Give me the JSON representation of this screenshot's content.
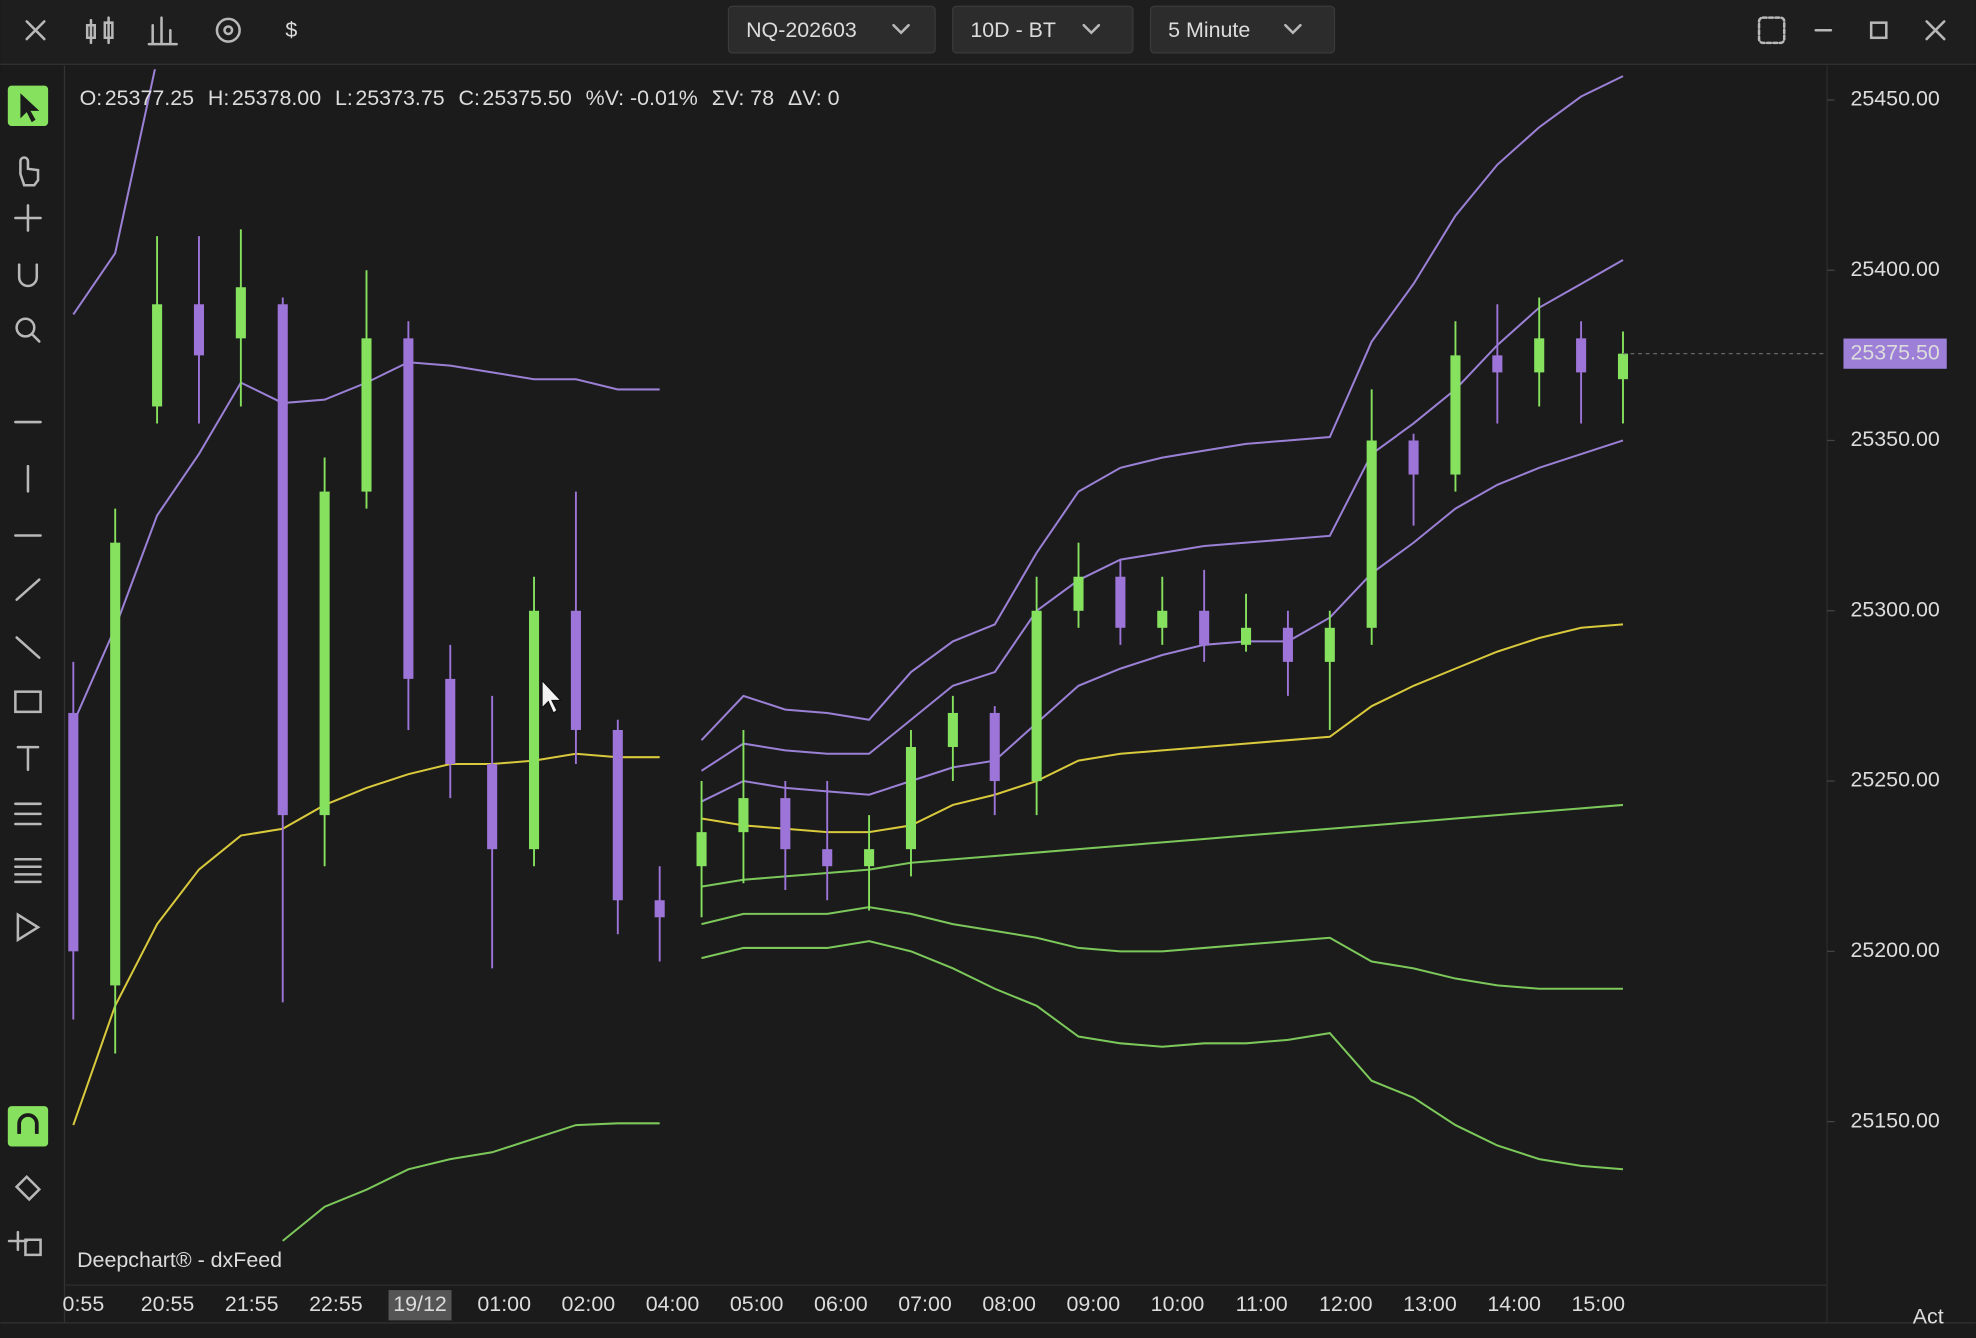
{
  "toolbar": {
    "symbol": "NQ-202603",
    "range": "10D - BT",
    "interval": "5 Minute"
  },
  "ohlc_header": {
    "fields": [
      {
        "label": "O:",
        "value": "25377.25"
      },
      {
        "label": "H:",
        "value": "25378.00"
      },
      {
        "label": "L:",
        "value": "25373.75"
      },
      {
        "label": "C:",
        "value": "25375.50"
      }
    ],
    "stats": [
      "%V: -0.01%",
      "ΣV: 78",
      "ΔV: 0"
    ]
  },
  "watermark": "Deepchart® - dxFeed",
  "corner_text": "Act",
  "chart_data": {
    "type": "candlestick",
    "up_color": "#86e25e",
    "down_color": "#9d74d8",
    "open": [
      25270,
      25190,
      25360,
      25390,
      25380,
      25390,
      25240,
      25335,
      25380,
      25280,
      25255,
      25230,
      25300,
      25265,
      25215,
      25225,
      25235,
      25245,
      25230,
      25225,
      25230,
      25260,
      25270,
      25250,
      25300,
      25310,
      25295,
      25300,
      25290,
      25295,
      25285,
      25295,
      25350,
      25340,
      25375,
      25370,
      25380,
      25368
    ],
    "high": [
      25285,
      25330,
      25410,
      25410,
      25412,
      25392,
      25345,
      25400,
      25385,
      25290,
      25275,
      25310,
      25335,
      25268,
      25225,
      25250,
      25265,
      25250,
      25250,
      25240,
      25265,
      25275,
      25272,
      25310,
      25320,
      25315,
      25310,
      25312,
      25305,
      25300,
      25300,
      25365,
      25352,
      25385,
      25390,
      25392,
      25385,
      25382
    ],
    "low": [
      25180,
      25170,
      25355,
      25355,
      25360,
      25185,
      25225,
      25330,
      25265,
      25245,
      25195,
      25225,
      25255,
      25205,
      25197,
      25210,
      25220,
      25218,
      25215,
      25212,
      25222,
      25250,
      25240,
      25240,
      25295,
      25290,
      25290,
      25285,
      25288,
      25275,
      25265,
      25290,
      25325,
      25335,
      25355,
      25360,
      25355,
      25355
    ],
    "close": [
      25200,
      25320,
      25390,
      25375,
      25395,
      25240,
      25335,
      25380,
      25280,
      25255,
      25230,
      25300,
      25265,
      25215,
      25210,
      25235,
      25245,
      25230,
      25225,
      25230,
      25260,
      25270,
      25250,
      25300,
      25310,
      25295,
      25300,
      25290,
      25295,
      25285,
      25295,
      25350,
      25340,
      25375,
      25370,
      25380,
      25370,
      25375.5
    ],
    "series": [
      {
        "color": "#d9c93c",
        "values": [
          25149,
          25184,
          25208,
          25224,
          25234,
          25236,
          25243,
          25248,
          25252,
          25255,
          25255,
          25256,
          25258,
          25257,
          25257,
          null,
          null,
          null,
          null,
          null,
          null,
          null,
          null,
          null,
          null,
          null,
          null,
          null,
          null,
          null,
          null,
          null,
          null,
          null,
          null,
          null,
          null,
          null
        ]
      },
      {
        "color": "#9b80d6",
        "values": [
          25267,
          25295,
          25328,
          25346,
          25367,
          25361,
          25362,
          25367,
          25373,
          25372,
          25370,
          25368,
          25368,
          25365,
          25365,
          null,
          null,
          null,
          null,
          null,
          null,
          null,
          null,
          null,
          null,
          null,
          null,
          null,
          null,
          null,
          null,
          null,
          null,
          null,
          null,
          null,
          null,
          null
        ]
      },
      {
        "color": "#9b80d6",
        "values": [
          25387,
          25405,
          25462,
          null,
          null,
          null,
          null,
          null,
          null,
          null,
          null,
          null,
          null,
          null,
          null,
          null,
          null,
          null,
          null,
          null,
          null,
          null,
          null,
          null,
          null,
          null,
          null,
          null,
          null,
          null,
          null,
          null,
          null,
          null,
          null,
          null,
          null,
          null
        ]
      },
      {
        "color": "#7cc85a",
        "values": [
          null,
          null,
          null,
          null,
          null,
          25115,
          25125,
          25130,
          25136,
          25139,
          25141,
          25145,
          25149,
          25149.5,
          25149.5,
          null,
          null,
          null,
          null,
          null,
          null,
          null,
          null,
          null,
          null,
          null,
          null,
          null,
          null,
          null,
          null,
          null,
          null,
          null,
          null,
          null,
          null,
          null
        ]
      },
      {
        "color": "#d9c93c",
        "values": [
          null,
          null,
          null,
          null,
          null,
          null,
          null,
          null,
          null,
          null,
          null,
          null,
          null,
          null,
          null,
          25239,
          25237,
          25236,
          25235,
          25235,
          25237,
          25243,
          25246,
          25250,
          25256,
          25258,
          25259,
          25260,
          25261,
          25262,
          25263,
          25272,
          25278,
          25283,
          25288,
          25292,
          25295,
          25296
        ]
      },
      {
        "color": "#9b80d6",
        "values": [
          null,
          null,
          null,
          null,
          null,
          null,
          null,
          null,
          null,
          null,
          null,
          null,
          null,
          null,
          null,
          25244,
          25250,
          25248,
          25247,
          25246,
          25250,
          25254,
          25256,
          25267,
          25278,
          25283,
          25287,
          25290,
          25291,
          25291,
          25298,
          25311,
          25320,
          25330,
          25337,
          25342,
          25346,
          25350
        ]
      },
      {
        "color": "#9b80d6",
        "values": [
          null,
          null,
          null,
          null,
          null,
          null,
          null,
          null,
          null,
          null,
          null,
          null,
          null,
          null,
          null,
          25253,
          25261,
          25259,
          25258,
          25258,
          25268,
          25278,
          25282,
          25300,
          25309,
          25315,
          25317,
          25319,
          25320,
          25321,
          25322,
          25346,
          25355,
          25365,
          25378,
          25389,
          25396,
          25403
        ]
      },
      {
        "color": "#9b80d6",
        "values": [
          null,
          null,
          null,
          null,
          null,
          null,
          null,
          null,
          null,
          null,
          null,
          null,
          null,
          null,
          null,
          25262,
          25275,
          25271,
          25270,
          25268,
          25282,
          25291,
          25296,
          25317,
          25335,
          25342,
          25345,
          25347,
          25349,
          25350,
          25351,
          25379,
          25396,
          25416,
          25431,
          25442,
          25451,
          25457
        ]
      },
      {
        "color": "#7cc85a",
        "values": [
          null,
          null,
          null,
          null,
          null,
          null,
          null,
          null,
          null,
          null,
          null,
          null,
          null,
          null,
          null,
          25219,
          25221,
          25222,
          25223,
          25224,
          25226,
          25227,
          25228,
          25229,
          25230,
          25231,
          25232,
          25233,
          25234,
          25235,
          25236,
          25237,
          25238,
          25239,
          25240,
          25241,
          25242,
          25243
        ]
      },
      {
        "color": "#7cc85a",
        "values": [
          null,
          null,
          null,
          null,
          null,
          null,
          null,
          null,
          null,
          null,
          null,
          null,
          null,
          null,
          null,
          25208,
          25211,
          25211,
          25211,
          25213,
          25211,
          25208,
          25206,
          25204,
          25201,
          25200,
          25200,
          25201,
          25202,
          25203,
          25204,
          25197,
          25195,
          25192,
          25190,
          25189,
          25189,
          25189
        ]
      },
      {
        "color": "#7cc85a",
        "values": [
          null,
          null,
          null,
          null,
          null,
          null,
          null,
          null,
          null,
          null,
          null,
          null,
          null,
          null,
          null,
          25198,
          25201,
          25201,
          25201,
          25203,
          25200,
          25195,
          25189,
          25184,
          25175,
          25173,
          25172,
          25173,
          25173,
          25174,
          25176,
          25162,
          25157,
          25149,
          25143,
          25139,
          25137,
          25136
        ]
      }
    ],
    "ylim": [
      25102,
      25459
    ],
    "yticks": [
      {
        "value": 25150,
        "label": "25150.00"
      },
      {
        "value": 25200,
        "label": "25200.00"
      },
      {
        "value": 25250,
        "label": "25250.00"
      },
      {
        "value": 25300,
        "label": "25300.00"
      },
      {
        "value": 25350,
        "label": "25350.00"
      },
      {
        "value": 25400,
        "label": "25400.00"
      },
      {
        "value": 25450,
        "label": "25450.00"
      }
    ],
    "xtick_labels": [
      "0:55",
      "20:55",
      "21:55",
      "22:55",
      "19/12",
      "01:00",
      "02:00",
      "04:00",
      "05:00",
      "06:00",
      "07:00",
      "08:00",
      "09:00",
      "10:00",
      "11:00",
      "12:00",
      "13:00",
      "14:00",
      "15:00"
    ],
    "highlighted_xtick": 4,
    "last_price": {
      "value": 25375.5,
      "label": "25375.50"
    },
    "last_price_color": "#9d7fd8"
  }
}
